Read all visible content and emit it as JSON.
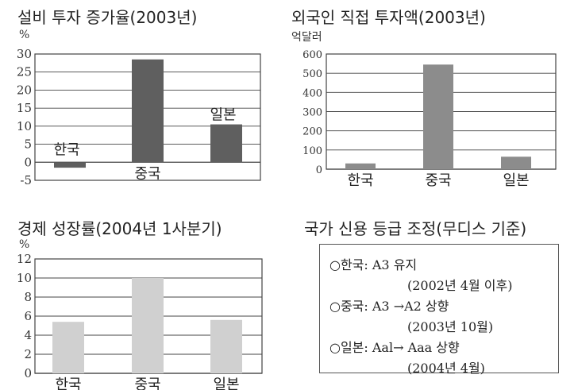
{
  "chart_data": [
    {
      "type": "bar",
      "title": "설비 투자 증가율(2003년)",
      "unit": "%",
      "categories": [
        "한국",
        "중국",
        "일본"
      ],
      "values": [
        -1.5,
        28.5,
        10.5
      ],
      "yticks": [
        -5,
        0,
        5,
        10,
        15,
        20,
        25,
        30
      ],
      "ylim": [
        -5,
        30
      ],
      "grid": true,
      "bar_color": "#5f5f5f"
    },
    {
      "type": "bar",
      "title": "외국인 직접 투자액(2003년)",
      "unit": "억달러",
      "categories": [
        "한국",
        "중국",
        "일본"
      ],
      "values": [
        30,
        545,
        65
      ],
      "yticks": [
        0,
        100,
        200,
        300,
        400,
        500,
        600
      ],
      "ylim": [
        0,
        600
      ],
      "grid": true,
      "bar_color": "#8c8c8c"
    },
    {
      "type": "bar",
      "title": "경제 성장률(2004년 1사분기)",
      "unit": "%",
      "categories": [
        "한국",
        "중국",
        "일본"
      ],
      "values": [
        5.4,
        10,
        5.6
      ],
      "yticks": [
        0,
        2,
        4,
        6,
        8,
        10,
        12
      ],
      "ylim": [
        0,
        12
      ],
      "grid": true,
      "bar_color": "#d0d0d0"
    }
  ],
  "credit_panel": {
    "title": "국가 신용 등급 조정(무디스 기준)",
    "lines": [
      "○한국: A3 유지",
      "(2002년 4월 이후)",
      "○중국: A3 →A2 상향",
      "(2003년 10월)",
      "○일본: Aal→ Aaa 상향",
      "(2004년 4월)"
    ]
  }
}
